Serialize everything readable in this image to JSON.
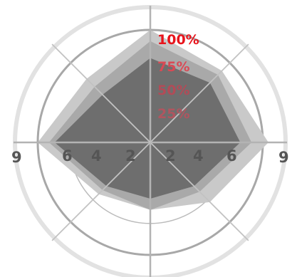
{
  "chart_data": {
    "type": "radar",
    "title": "",
    "spokes": 8,
    "grid": true,
    "radial_scale_labels": [
      "100%",
      "75%",
      "50%",
      "25%"
    ],
    "horizontal_axis_labels": [
      "9",
      "6",
      "4",
      "2",
      "2",
      "4",
      "6",
      "9"
    ],
    "series": [
      {
        "values": [
          100,
          90,
          105,
          75,
          60,
          65,
          100,
          80
        ],
        "color": "#c9c9c9"
      },
      {
        "values": [
          90,
          85,
          90,
          62,
          60,
          60,
          90,
          70
        ],
        "color": "#a9a9a9"
      },
      {
        "values": [
          75,
          75,
          80,
          55,
          50,
          55,
          85,
          60
        ],
        "color": "#6e6e6e"
      }
    ],
    "colors": {
      "outer_ring": "#e2e2e2",
      "main_ring": "#a8a8a8",
      "inner_ring": "#bbbbbb",
      "label_100": "#e8141c",
      "label_75": "#d94a55",
      "label_50": "#b24b57",
      "label_25": "#b0555f",
      "axis_label": "#555555"
    }
  }
}
